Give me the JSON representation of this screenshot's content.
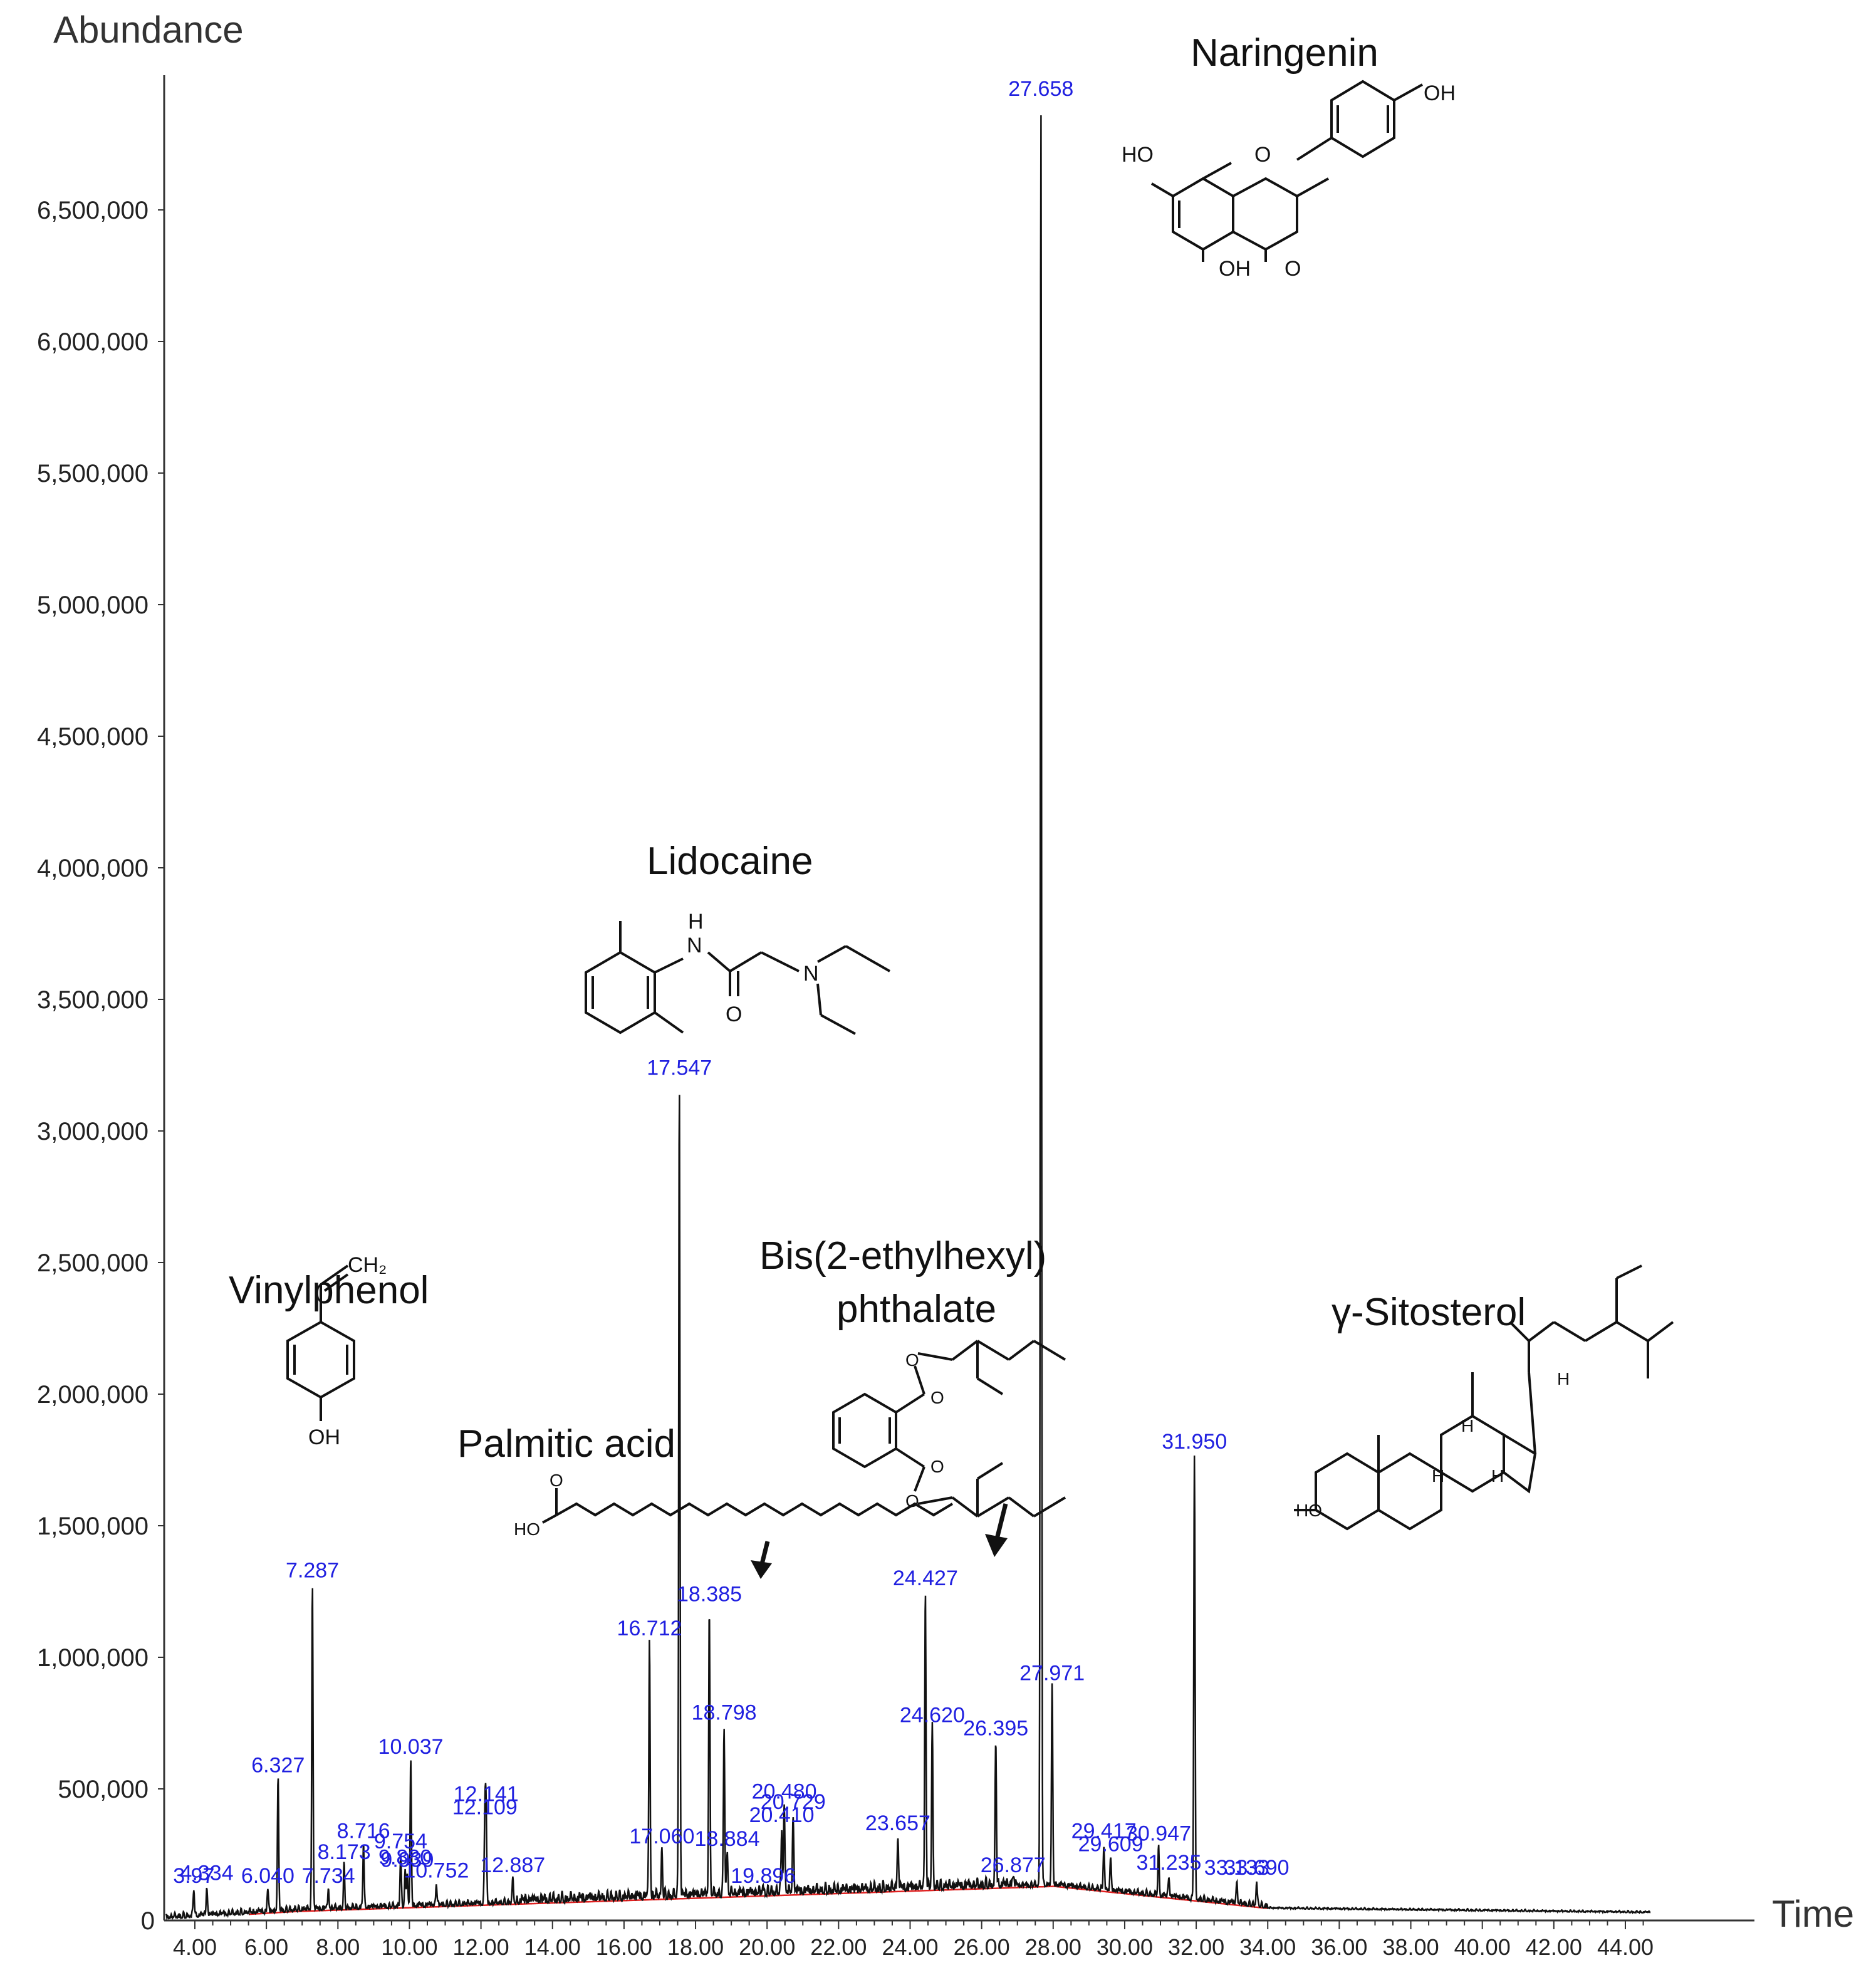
{
  "chart_data": {
    "type": "line",
    "title": "",
    "ylabel": "Abundance",
    "xlabel": "Time",
    "xlim": [
      3.2,
      44.7
    ],
    "ylim": [
      0,
      7000000
    ],
    "x_ticks": [
      "4.00",
      "6.00",
      "8.00",
      "10.00",
      "12.00",
      "14.00",
      "16.00",
      "18.00",
      "20.00",
      "22.00",
      "24.00",
      "26.00",
      "28.00",
      "30.00",
      "32.00",
      "34.00",
      "36.00",
      "38.00",
      "40.00",
      "42.00",
      "44.00"
    ],
    "y_ticks": [
      "500,000",
      "1,000,000",
      "1,500,000",
      "2,000,000",
      "2,500,000",
      "3,000,000",
      "3,500,000",
      "4,000,000",
      "4,500,000",
      "5,000,000",
      "5,500,000",
      "6,000,000",
      "6,500,000"
    ],
    "y_tick_values": [
      500000,
      1000000,
      1500000,
      2000000,
      2500000,
      3000000,
      3500000,
      4000000,
      4500000,
      5000000,
      5500000,
      6000000,
      6500000
    ],
    "zero_label": "0",
    "peaks": [
      {
        "x": 3.97,
        "y": 110000,
        "label": "3.97"
      },
      {
        "x": 4.334,
        "y": 120000,
        "label": "4.334"
      },
      {
        "x": 6.04,
        "y": 110000,
        "label": "6.040"
      },
      {
        "x": 6.327,
        "y": 530000,
        "label": "6.327"
      },
      {
        "x": 7.287,
        "y": 1270000,
        "label": "7.287"
      },
      {
        "x": 7.734,
        "y": 110000,
        "label": "7.734"
      },
      {
        "x": 8.173,
        "y": 200000,
        "label": "8.173"
      },
      {
        "x": 8.716,
        "y": 280000,
        "label": "8.716"
      },
      {
        "x": 9.754,
        "y": 240000,
        "label": "9.754"
      },
      {
        "x": 9.88,
        "y": 180000,
        "label": "9.880"
      },
      {
        "x": 9.939,
        "y": 170000,
        "label": "9.939"
      },
      {
        "x": 10.037,
        "y": 600000,
        "label": "10.037"
      },
      {
        "x": 10.752,
        "y": 130000,
        "label": "10.752"
      },
      {
        "x": 12.109,
        "y": 370000,
        "label": "12.109"
      },
      {
        "x": 12.141,
        "y": 420000,
        "label": "12.141"
      },
      {
        "x": 12.887,
        "y": 150000,
        "label": "12.887"
      },
      {
        "x": 16.712,
        "y": 1050000,
        "label": "16.712"
      },
      {
        "x": 17.06,
        "y": 260000,
        "label": "17.060"
      },
      {
        "x": 17.547,
        "y": 3180000,
        "label": "17.547"
      },
      {
        "x": 18.385,
        "y": 1180000,
        "label": "18.385"
      },
      {
        "x": 18.798,
        "y": 730000,
        "label": "18.798"
      },
      {
        "x": 18.884,
        "y": 250000,
        "label": "18.884"
      },
      {
        "x": 19.896,
        "y": 110000,
        "label": "19.896"
      },
      {
        "x": 20.41,
        "y": 340000,
        "label": "20.410"
      },
      {
        "x": 20.48,
        "y": 430000,
        "label": "20.480"
      },
      {
        "x": 20.729,
        "y": 390000,
        "label": "20.729"
      },
      {
        "x": 23.657,
        "y": 310000,
        "label": "23.657"
      },
      {
        "x": 24.427,
        "y": 1240000,
        "label": "24.427"
      },
      {
        "x": 24.62,
        "y": 720000,
        "label": "24.620"
      },
      {
        "x": 26.395,
        "y": 670000,
        "label": "26.395"
      },
      {
        "x": 26.877,
        "y": 150000,
        "label": "26.877"
      },
      {
        "x": 27.658,
        "y": 6900000,
        "label": "27.658"
      },
      {
        "x": 27.971,
        "y": 880000,
        "label": "27.971"
      },
      {
        "x": 29.417,
        "y": 280000,
        "label": "29.417"
      },
      {
        "x": 29.609,
        "y": 230000,
        "label": "29.609"
      },
      {
        "x": 30.947,
        "y": 270000,
        "label": "30.947"
      },
      {
        "x": 31.235,
        "y": 160000,
        "label": "31.235"
      },
      {
        "x": 31.95,
        "y": 1760000,
        "label": "31.950"
      },
      {
        "x": 33.133,
        "y": 140000,
        "label": "33.133"
      },
      {
        "x": 33.69,
        "y": 140000,
        "label": "33.690"
      }
    ],
    "annotations": {
      "vinylphenol": "Vinylphenol",
      "palmitic": "Palmitic acid",
      "lidocaine": "Lidocaine",
      "dehp_line1": "Bis(2-ethylhexyl)",
      "dehp_line2": "phthalate",
      "naringenin": "Naringenin",
      "sitosterol": "γ-Sitosterol"
    },
    "atoms": {
      "ch2": "CH₂",
      "oh": "OH",
      "ho": "HO",
      "o": "O",
      "h": "H",
      "n": "N"
    },
    "colors": {
      "trace": "#111111",
      "baseline": "#e02020",
      "peak_label": "#2020e0"
    },
    "grid": false,
    "legend": "none"
  }
}
